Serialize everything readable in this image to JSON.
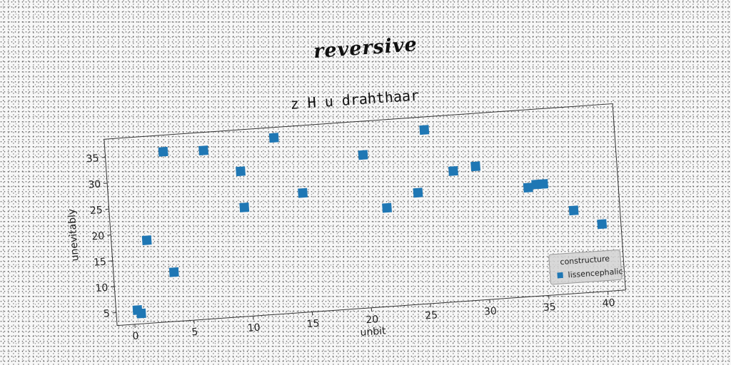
{
  "heading": "reversive",
  "chart_data": {
    "type": "scatter",
    "title": "z H u drahthaar",
    "xlabel": "unbit",
    "ylabel": "unevitably",
    "xlim": [
      -1.5,
      41.5
    ],
    "ylim": [
      2.5,
      38.5
    ],
    "xticks": [
      0,
      5,
      10,
      15,
      20,
      25,
      30,
      35,
      40
    ],
    "yticks": [
      5,
      10,
      15,
      20,
      25,
      30,
      35
    ],
    "grid": false,
    "rotation_deg": -4,
    "legend": {
      "title": "constructure",
      "position": "lower-right"
    },
    "series": [
      {
        "name": "lissencephalic",
        "color": "#1f77b4",
        "marker": "square",
        "points": [
          {
            "x": 0.3,
            "y": 5.2
          },
          {
            "x": 0.6,
            "y": 4.5
          },
          {
            "x": 1.5,
            "y": 18.5
          },
          {
            "x": 3.4,
            "y": 35.3
          },
          {
            "x": 3.6,
            "y": 12.0
          },
          {
            "x": 6.8,
            "y": 35.0
          },
          {
            "x": 9.8,
            "y": 30.5
          },
          {
            "x": 9.9,
            "y": 23.5
          },
          {
            "x": 12.8,
            "y": 36.5
          },
          {
            "x": 14.9,
            "y": 25.5
          },
          {
            "x": 20.2,
            "y": 32.0
          },
          {
            "x": 21.9,
            "y": 21.5
          },
          {
            "x": 24.6,
            "y": 24.0
          },
          {
            "x": 25.5,
            "y": 36.0
          },
          {
            "x": 27.7,
            "y": 27.7
          },
          {
            "x": 29.6,
            "y": 28.3
          },
          {
            "x": 33.9,
            "y": 23.5
          },
          {
            "x": 34.6,
            "y": 24.0
          },
          {
            "x": 35.2,
            "y": 24.0
          },
          {
            "x": 37.6,
            "y": 18.5
          },
          {
            "x": 39.9,
            "y": 15.5
          }
        ]
      }
    ]
  }
}
